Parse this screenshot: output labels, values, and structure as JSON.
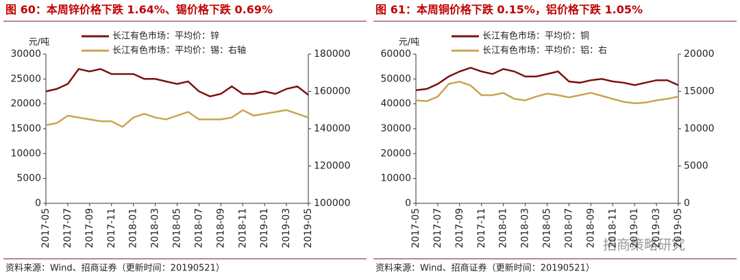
{
  "chart_data": [
    {
      "type": "line",
      "title": "图 60：本周锌价格下跌 1.64%、锡价格下跌 0.69%",
      "ylabel": "元/吨",
      "x": [
        "2017-05",
        "2017-06",
        "2017-07",
        "2017-08",
        "2017-09",
        "2017-10",
        "2017-11",
        "2017-12",
        "2018-01",
        "2018-02",
        "2018-03",
        "2018-04",
        "2018-05",
        "2018-06",
        "2018-07",
        "2018-08",
        "2018-09",
        "2018-10",
        "2018-11",
        "2018-12",
        "2019-01",
        "2019-02",
        "2019-03",
        "2019-04",
        "2019-05"
      ],
      "xticks": [
        "2017-05",
        "2017-07",
        "2017-09",
        "2017-11",
        "2018-01",
        "2018-03",
        "2018-05",
        "2018-07",
        "2018-09",
        "2018-11",
        "2019-01",
        "2019-03",
        "2019-05"
      ],
      "ylim": [
        0,
        30000
      ],
      "yticks": [
        0,
        5000,
        10000,
        15000,
        20000,
        25000,
        30000
      ],
      "y2lim": [
        100000,
        180000
      ],
      "y2ticks": [
        100000,
        120000,
        140000,
        160000,
        180000
      ],
      "series": [
        {
          "name": "长江有色市场：平均价：锌",
          "color": "#7b0f0f",
          "values": [
            22500,
            23000,
            24000,
            27000,
            26500,
            27000,
            26000,
            26000,
            26000,
            25000,
            25000,
            24500,
            24000,
            24500,
            22500,
            21500,
            22000,
            23500,
            22000,
            22000,
            22500,
            22000,
            23000,
            23500,
            21800
          ]
        },
        {
          "name": "长江有色市场：平均价：锡：右轴",
          "color": "#c9a44e",
          "axis": "y2",
          "values": [
            142000,
            143000,
            147000,
            146000,
            145000,
            144000,
            144000,
            141000,
            146000,
            148000,
            146000,
            145000,
            147000,
            149000,
            145000,
            145000,
            145000,
            146000,
            150000,
            147000,
            148000,
            149000,
            150000,
            148000,
            146000
          ]
        }
      ],
      "source": "资料来源：Wind、招商证券（更新时间：20190521）"
    },
    {
      "type": "line",
      "title": "图 61：本周铜价格下跌 0.15%，铝价格下跌 1.05%",
      "ylabel": "元/吨",
      "x": [
        "2017-05",
        "2017-06",
        "2017-07",
        "2017-08",
        "2017-09",
        "2017-10",
        "2017-11",
        "2017-12",
        "2018-01",
        "2018-02",
        "2018-03",
        "2018-04",
        "2018-05",
        "2018-06",
        "2018-07",
        "2018-08",
        "2018-09",
        "2018-10",
        "2018-11",
        "2018-12",
        "2019-01",
        "2019-02",
        "2019-03",
        "2019-04",
        "2019-05"
      ],
      "xticks": [
        "2017-05",
        "2017-07",
        "2017-09",
        "2017-11",
        "2018-01",
        "2018-03",
        "2018-05",
        "2018-07",
        "2018-09",
        "2018-11",
        "2019-01",
        "2019-03",
        "2019-05"
      ],
      "ylim": [
        0,
        60000
      ],
      "yticks": [
        0,
        10000,
        20000,
        30000,
        40000,
        50000,
        60000
      ],
      "y2lim": [
        0,
        20000
      ],
      "y2ticks": [
        0,
        5000,
        10000,
        15000,
        20000
      ],
      "series": [
        {
          "name": "长江有色市场：平均价：铜",
          "color": "#7b0f0f",
          "values": [
            45500,
            46000,
            48000,
            51000,
            53000,
            54500,
            53000,
            52000,
            54000,
            53000,
            51000,
            51000,
            52000,
            53000,
            49000,
            48500,
            49500,
            50000,
            49000,
            48500,
            47500,
            48500,
            49500,
            49500,
            47500
          ]
        },
        {
          "name": "长江有色市场：平均价：铝：右",
          "color": "#c9a44e",
          "axis": "y2",
          "values": [
            13800,
            13700,
            14300,
            16000,
            16300,
            15800,
            14500,
            14500,
            14800,
            14000,
            13800,
            14300,
            14700,
            14500,
            14200,
            14500,
            14800,
            14400,
            14000,
            13600,
            13400,
            13500,
            13800,
            14000,
            14300
          ]
        }
      ],
      "source": "资料来源：Wind、招商证券（更新时间：20190521）"
    }
  ],
  "watermark": "招商策略研究"
}
